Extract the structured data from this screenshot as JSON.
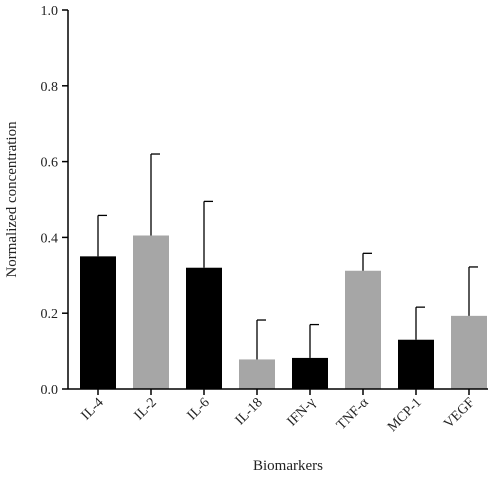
{
  "chart_data": {
    "type": "bar",
    "title": "",
    "xlabel": "Biomarkers",
    "ylabel": "Normalized concentration",
    "ylim": [
      0,
      1.0
    ],
    "yticks": [
      0.0,
      0.2,
      0.4,
      0.6,
      0.8,
      1.0
    ],
    "ytick_labels": [
      "0.0",
      "0.2",
      "0.4",
      "0.6",
      "0.8",
      "1.0"
    ],
    "categories": [
      "IL-4",
      "IL-2",
      "IL-6",
      "IL-18",
      "IFN-γ",
      "TNF-α",
      "MCP-1",
      "VEGF"
    ],
    "values": [
      0.35,
      0.405,
      0.32,
      0.078,
      0.082,
      0.312,
      0.13,
      0.193
    ],
    "error_upper": [
      0.458,
      0.62,
      0.495,
      0.182,
      0.17,
      0.358,
      0.216,
      0.322
    ],
    "bar_colors": [
      "#000000",
      "#a6a6a6",
      "#000000",
      "#a6a6a6",
      "#000000",
      "#a6a6a6",
      "#000000",
      "#a6a6a6"
    ],
    "grid": false,
    "legend": "none"
  }
}
